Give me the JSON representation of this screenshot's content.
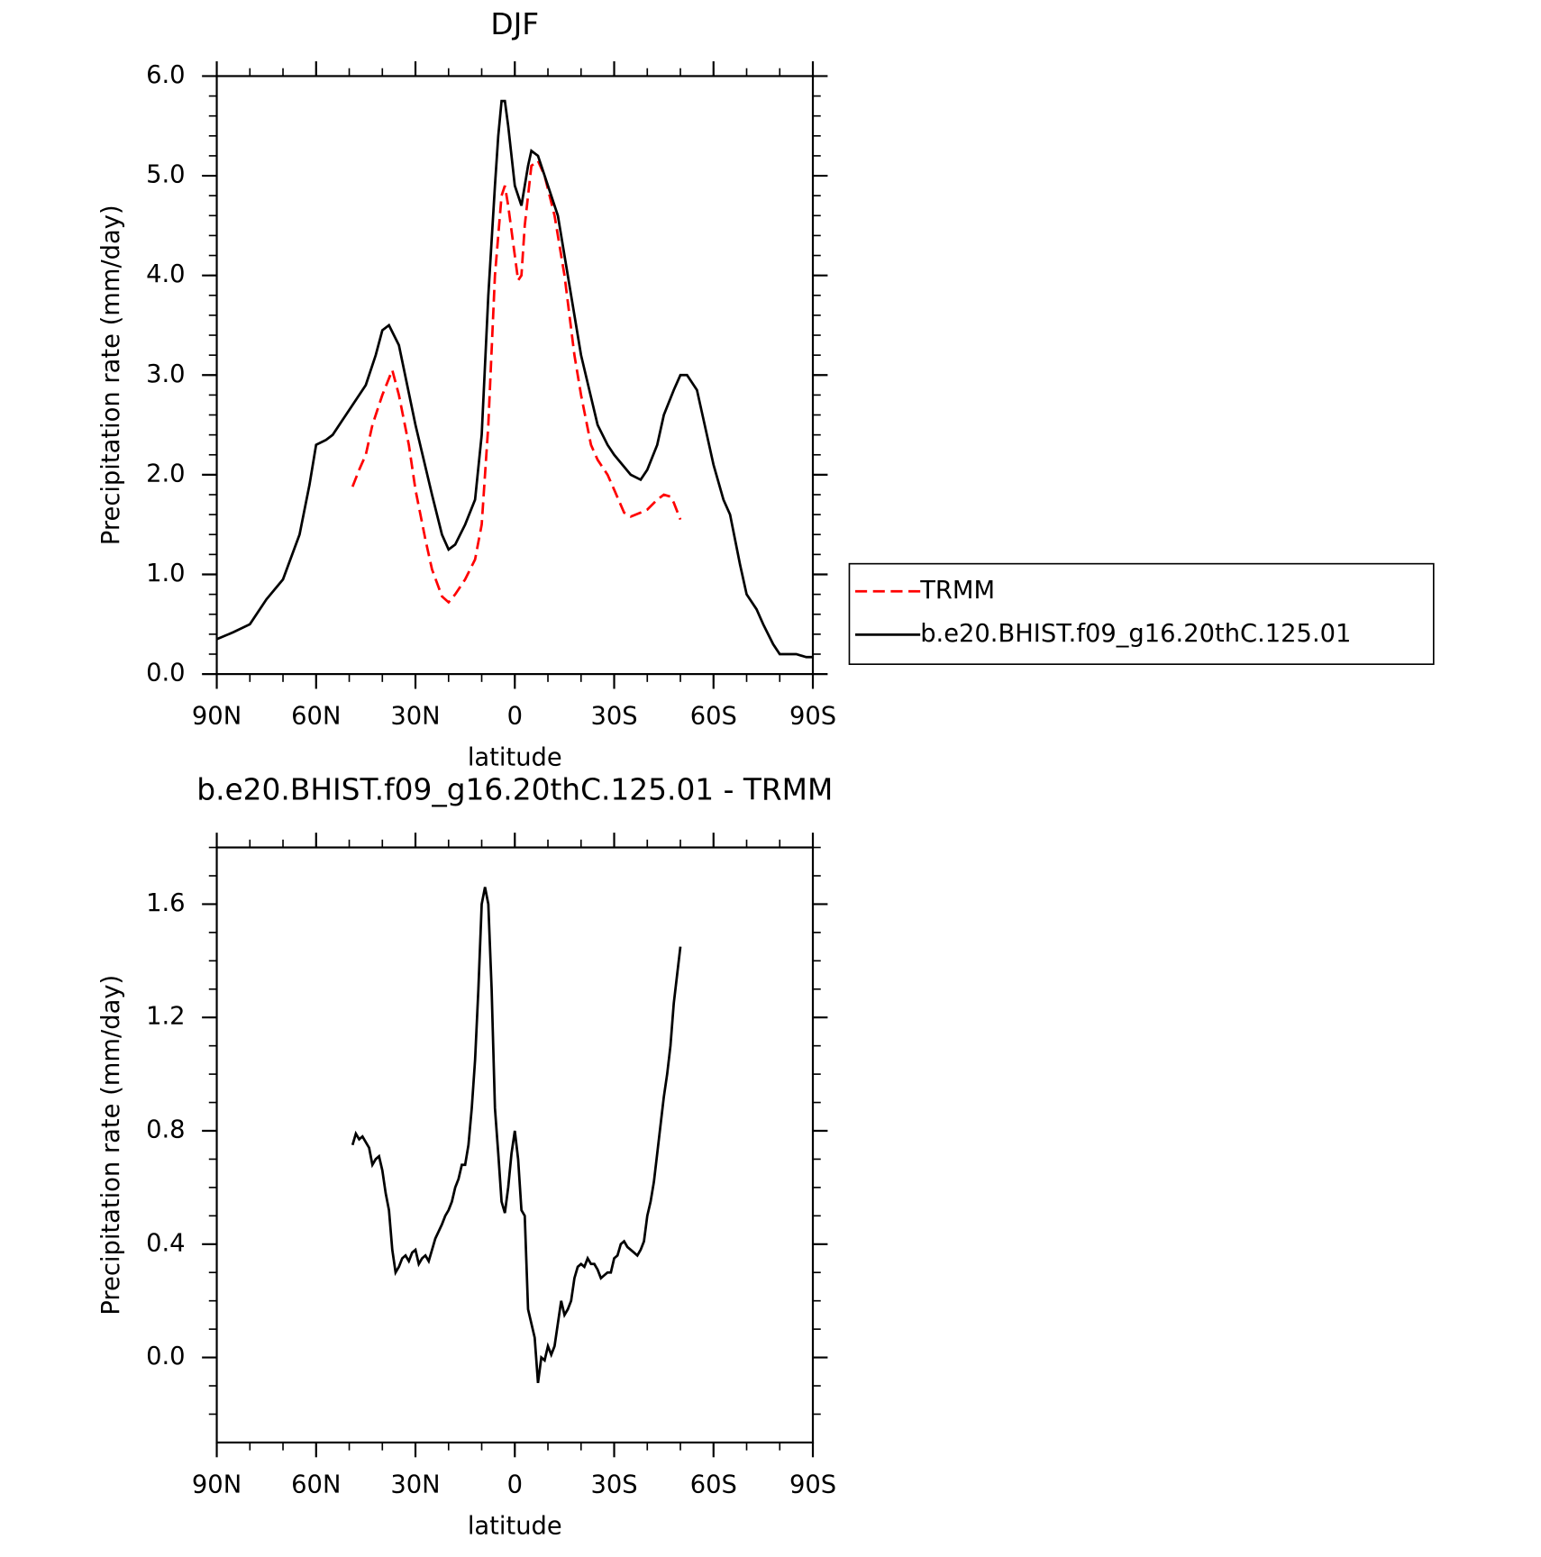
{
  "chart_data": [
    {
      "type": "line",
      "title": "DJF",
      "x_label": "latitude",
      "y_label": "Precipitation rate (mm/day)",
      "xlim": [
        90,
        -90
      ],
      "xticks": [
        {
          "value": 90,
          "label": "90N"
        },
        {
          "value": 60,
          "label": "60N"
        },
        {
          "value": 30,
          "label": "30N"
        },
        0,
        {
          "value": -30,
          "label": "30S"
        },
        {
          "value": -60,
          "label": "60S"
        },
        {
          "value": -90,
          "label": "90S"
        }
      ],
      "ylim": [
        0,
        6
      ],
      "yticks": [
        {
          "value": 0,
          "label": "0.0"
        },
        {
          "value": 1,
          "label": "1.0"
        },
        {
          "value": 2,
          "label": "2.0"
        },
        {
          "value": 3,
          "label": "3.0"
        },
        {
          "value": 4,
          "label": "4.0"
        },
        {
          "value": 5,
          "label": "5.0"
        },
        {
          "value": 6,
          "label": "6.0"
        }
      ],
      "legend": "right",
      "series": [
        {
          "name": "TRMM",
          "color": "#ff0000",
          "dashed": true,
          "x": [
            49,
            47,
            45,
            43,
            40,
            37,
            35,
            32,
            30,
            27,
            25,
            22,
            20,
            18,
            15,
            12,
            10,
            8,
            6,
            4,
            3,
            2,
            0,
            -1,
            -2,
            -3,
            -5,
            -7,
            -9,
            -12,
            -15,
            -18,
            -20,
            -23,
            -25,
            -28,
            -30,
            -33,
            -35,
            -38,
            -40,
            -43,
            -45,
            -47,
            -48,
            -50
          ],
          "values": [
            1.88,
            2.05,
            2.2,
            2.5,
            2.8,
            3.05,
            2.8,
            2.3,
            1.85,
            1.35,
            1.05,
            0.78,
            0.72,
            0.8,
            0.95,
            1.15,
            1.5,
            2.5,
            4.0,
            4.8,
            4.9,
            4.7,
            4.2,
            3.95,
            4.0,
            4.5,
            5.1,
            5.15,
            5.0,
            4.6,
            4.0,
            3.2,
            2.8,
            2.3,
            2.15,
            2.0,
            1.85,
            1.62,
            1.58,
            1.62,
            1.65,
            1.75,
            1.8,
            1.78,
            1.72,
            1.55
          ]
        },
        {
          "name": "b.e20.BHIST.f09_g16.20thC.125.01",
          "color": "#000000",
          "dashed": false,
          "x": [
            90,
            85,
            80,
            75,
            70,
            65,
            62,
            60,
            57,
            55,
            52,
            50,
            45,
            42,
            40,
            38,
            35,
            30,
            25,
            22,
            20,
            18,
            15,
            12,
            10,
            8,
            6,
            5,
            4,
            3,
            2,
            0,
            -2,
            -4,
            -5,
            -7,
            -10,
            -13,
            -15,
            -18,
            -20,
            -25,
            -28,
            -30,
            -35,
            -38,
            -40,
            -43,
            -45,
            -48,
            -50,
            -52,
            -55,
            -58,
            -60,
            -63,
            -65,
            -68,
            -70,
            -73,
            -75,
            -78,
            -80,
            -83,
            -85,
            -88,
            -90
          ],
          "values": [
            0.35,
            0.42,
            0.5,
            0.75,
            0.95,
            1.4,
            1.9,
            2.3,
            2.35,
            2.4,
            2.55,
            2.65,
            2.9,
            3.2,
            3.45,
            3.5,
            3.3,
            2.5,
            1.8,
            1.4,
            1.25,
            1.3,
            1.5,
            1.75,
            2.4,
            3.8,
            4.9,
            5.4,
            5.75,
            5.75,
            5.5,
            4.9,
            4.7,
            5.1,
            5.25,
            5.2,
            4.9,
            4.6,
            4.2,
            3.6,
            3.2,
            2.5,
            2.3,
            2.2,
            2.0,
            1.95,
            2.05,
            2.3,
            2.6,
            2.85,
            3.0,
            3.0,
            2.85,
            2.4,
            2.1,
            1.75,
            1.6,
            1.1,
            0.8,
            0.65,
            0.5,
            0.3,
            0.2,
            0.2,
            0.2,
            0.17,
            0.17
          ]
        }
      ]
    },
    {
      "type": "line",
      "title": "b.e20.BHIST.f09_g16.20thC.125.01  -  TRMM",
      "x_label": "latitude",
      "y_label": "Precipitation rate (mm/day)",
      "xlim": [
        90,
        -90
      ],
      "xticks": [
        {
          "value": 90,
          "label": "90N"
        },
        {
          "value": 60,
          "label": "60N"
        },
        {
          "value": 30,
          "label": "30N"
        },
        0,
        {
          "value": -30,
          "label": "30S"
        },
        {
          "value": -60,
          "label": "60S"
        },
        {
          "value": -90,
          "label": "90S"
        }
      ],
      "ylim": [
        -0.3,
        1.8
      ],
      "yticks": [
        {
          "value": 0,
          "label": "0.0"
        },
        0.4,
        0.8,
        1.2,
        1.6
      ],
      "color": "#000000",
      "x": [
        49,
        48,
        47,
        46,
        44,
        43,
        42,
        41,
        40,
        39,
        38,
        37,
        36,
        35,
        34,
        33,
        32,
        31,
        30,
        29,
        28,
        27,
        26,
        25,
        24,
        22,
        21,
        20,
        19,
        18,
        17,
        16,
        15,
        14,
        13,
        12,
        11,
        10,
        9,
        8,
        7,
        6,
        5,
        4,
        3,
        2,
        1,
        0,
        -1,
        -2,
        -3,
        -4,
        -5,
        -6,
        -7,
        -8,
        -9,
        -10,
        -11,
        -12,
        -13,
        -14,
        -15,
        -16,
        -17,
        -18,
        -19,
        -20,
        -21,
        -22,
        -23,
        -24,
        -25,
        -26,
        -27,
        -28,
        -29,
        -30,
        -31,
        -32,
        -33,
        -34,
        -35,
        -36,
        -37,
        -38,
        -39,
        -40,
        -41,
        -42,
        -43,
        -44,
        -45,
        -46,
        -47,
        -48,
        -49,
        -50
      ],
      "values": [
        0.75,
        0.79,
        0.77,
        0.78,
        0.74,
        0.68,
        0.7,
        0.71,
        0.66,
        0.58,
        0.52,
        0.38,
        0.3,
        0.32,
        0.35,
        0.36,
        0.34,
        0.37,
        0.38,
        0.33,
        0.35,
        0.36,
        0.34,
        0.38,
        0.42,
        0.47,
        0.5,
        0.52,
        0.55,
        0.6,
        0.63,
        0.68,
        0.68,
        0.75,
        0.88,
        1.05,
        1.3,
        1.6,
        1.66,
        1.6,
        1.3,
        0.88,
        0.72,
        0.55,
        0.51,
        0.6,
        0.72,
        0.8,
        0.7,
        0.52,
        0.5,
        0.17,
        0.12,
        0.07,
        -0.09,
        0.0,
        -0.01,
        0.04,
        0.01,
        0.04,
        0.12,
        0.2,
        0.15,
        0.17,
        0.2,
        0.28,
        0.32,
        0.33,
        0.32,
        0.35,
        0.33,
        0.33,
        0.31,
        0.28,
        0.29,
        0.3,
        0.3,
        0.35,
        0.36,
        0.4,
        0.41,
        0.39,
        0.38,
        0.37,
        0.36,
        0.38,
        0.41,
        0.5,
        0.55,
        0.62,
        0.72,
        0.82,
        0.92,
        1.0,
        1.1,
        1.25,
        1.35,
        1.45
      ]
    }
  ]
}
